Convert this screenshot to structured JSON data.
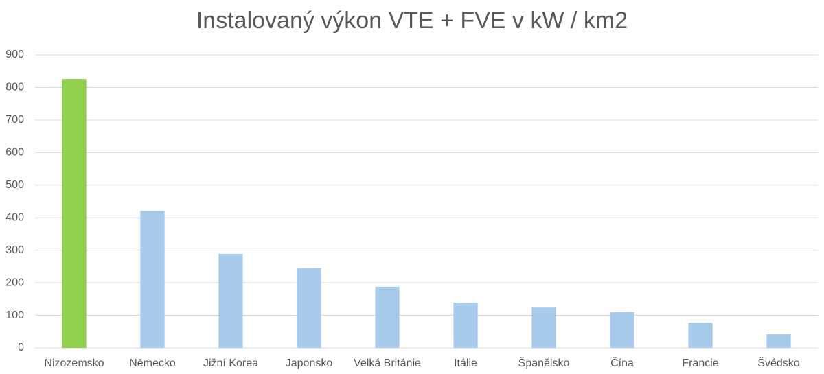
{
  "chart_data": {
    "type": "bar",
    "title": "Instalovaný výkon VTE + FVE v kW / km2",
    "categories": [
      "Nizozemsko",
      "Německo",
      "Jižní Korea",
      "Japonsko",
      "Velká Británie",
      "Itálie",
      "Španělsko",
      "Čína",
      "Francie",
      "Švédsko"
    ],
    "values": [
      826,
      421,
      289,
      245,
      188,
      139,
      124,
      110,
      78,
      42
    ],
    "colors": [
      "#92d050",
      "#a9cbeb",
      "#a9cbeb",
      "#a9cbeb",
      "#a9cbeb",
      "#a9cbeb",
      "#a9cbeb",
      "#a9cbeb",
      "#a9cbeb",
      "#a9cbeb"
    ],
    "ylim": [
      0,
      900
    ],
    "yticks": [
      0,
      100,
      200,
      300,
      400,
      500,
      600,
      700,
      800,
      900
    ],
    "grid": true
  }
}
